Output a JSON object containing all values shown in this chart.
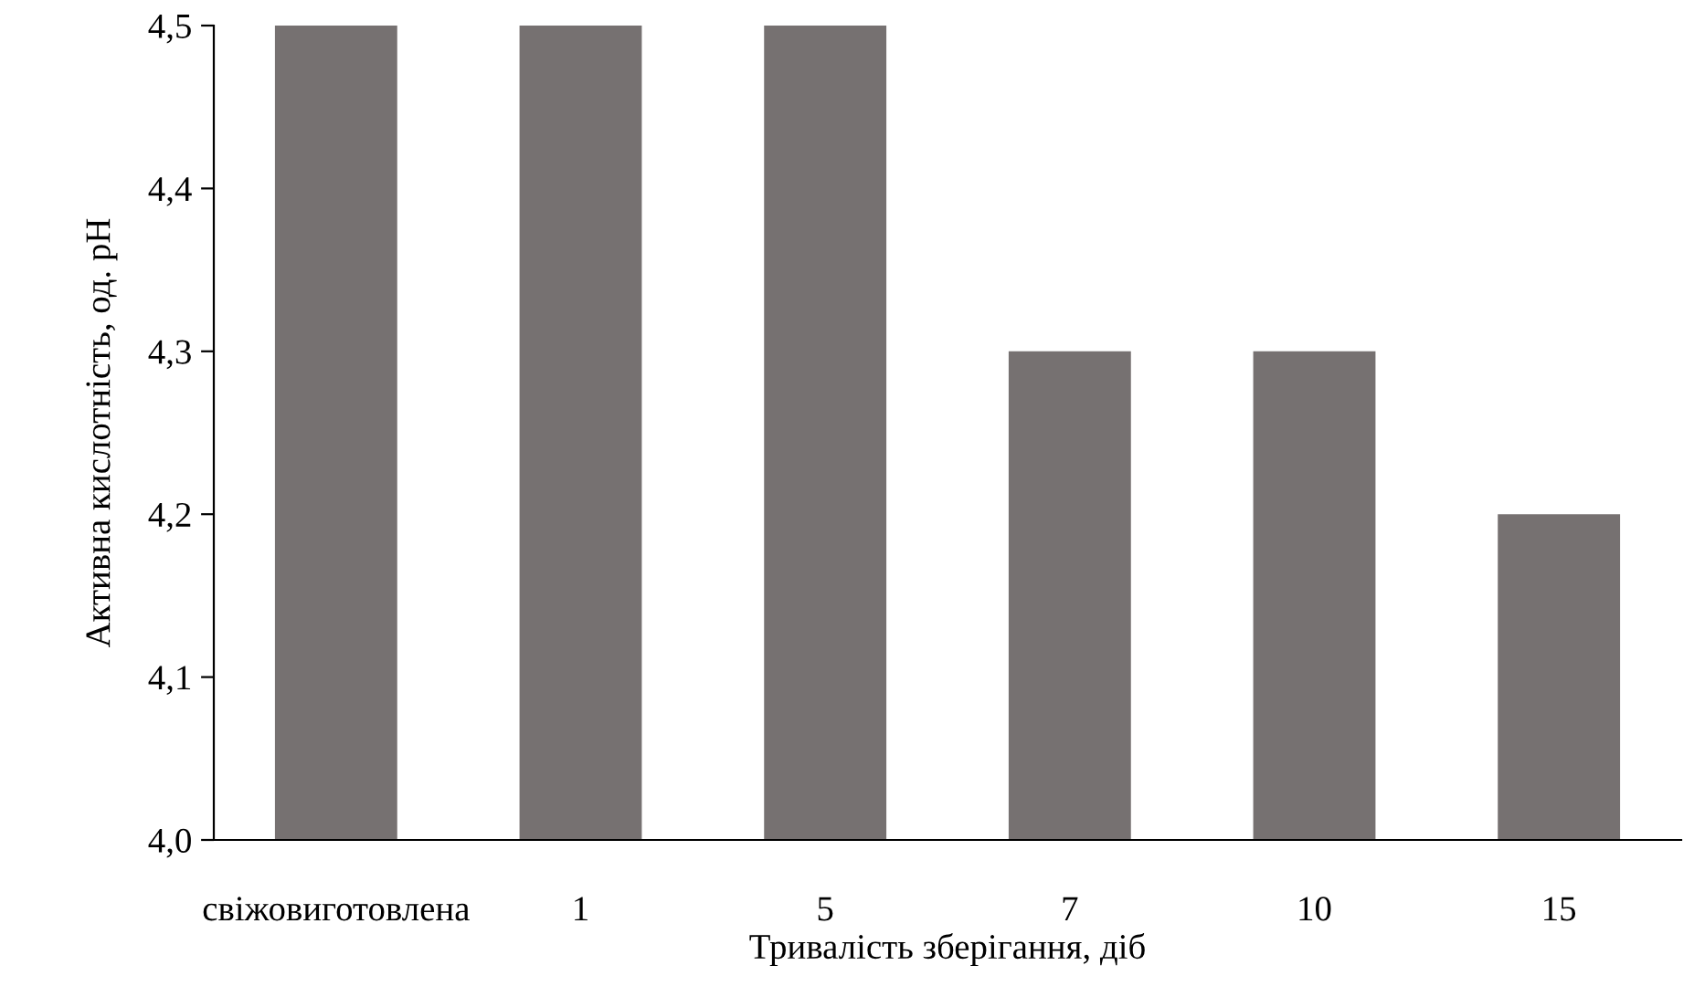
{
  "chart_data": {
    "type": "bar",
    "xlabel": "Тривалість зберігання, діб",
    "ylabel": "Активна кислотність, од. рН",
    "categories": [
      "свіжовиготовлена",
      "1",
      "5",
      "7",
      "10",
      "15"
    ],
    "values": [
      4.5,
      4.5,
      4.5,
      4.3,
      4.3,
      4.2
    ],
    "color": "#767171",
    "ylim": [
      4.0,
      4.5
    ],
    "yticks": [
      {
        "value": 4.0,
        "label": "4,0"
      },
      {
        "value": 4.1,
        "label": "4,1"
      },
      {
        "value": 4.2,
        "label": "4,2"
      },
      {
        "value": 4.3,
        "label": "4,3"
      },
      {
        "value": 4.4,
        "label": "4,4"
      },
      {
        "value": 4.5,
        "label": "4,5"
      }
    ]
  }
}
